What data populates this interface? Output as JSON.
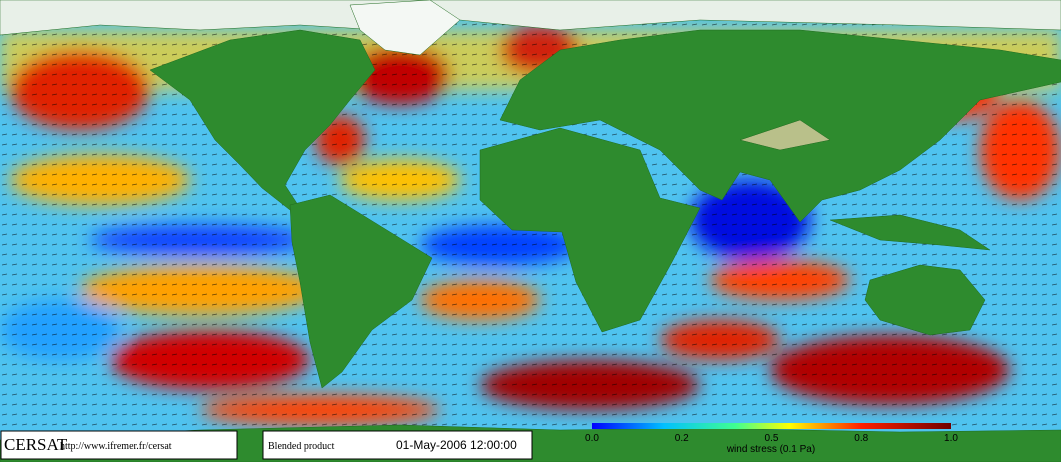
{
  "footer": {
    "org": "CERSAT",
    "url": "http://www.ifremer.fr/cersat",
    "product": "Blended product",
    "datetime": "01-May-2006 12:00:00"
  },
  "colorbar": {
    "tick_labels": [
      "0.0",
      "0.2",
      "0.5",
      "0.8",
      "1.0"
    ],
    "label": "wind stress (0.1 Pa)"
  }
}
